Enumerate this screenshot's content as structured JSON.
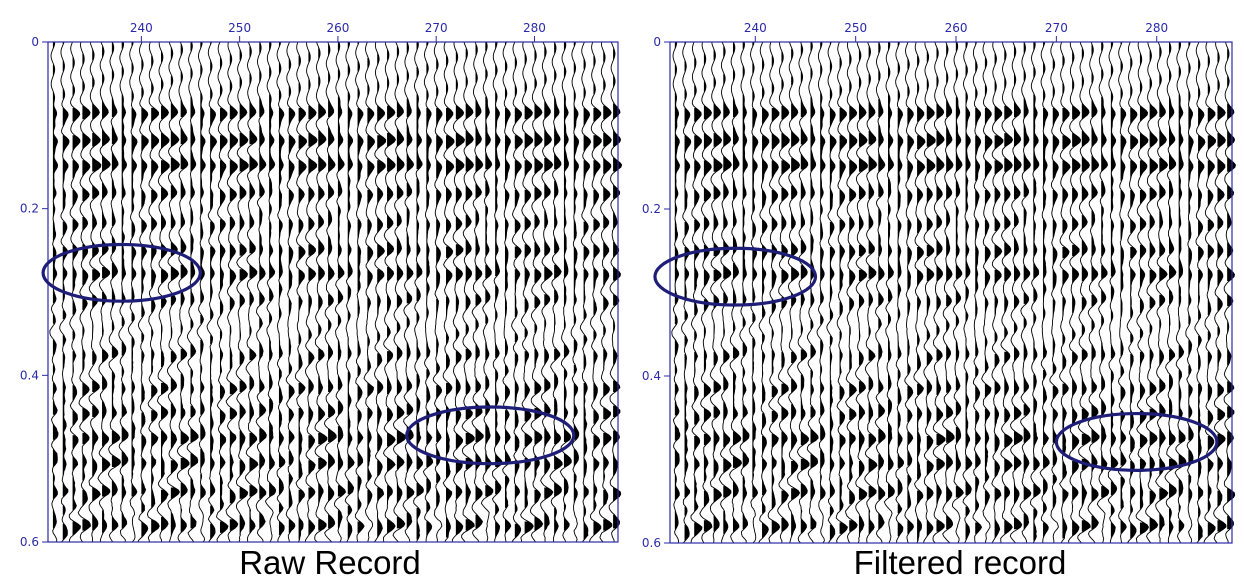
{
  "panels": [
    {
      "id": "raw",
      "caption": "Raw Record",
      "x_ticks": [
        {
          "value": 240,
          "label": "240"
        },
        {
          "value": 250,
          "label": "250"
        },
        {
          "value": 260,
          "label": "260"
        },
        {
          "value": 270,
          "label": "270"
        },
        {
          "value": 280,
          "label": "280"
        }
      ],
      "y_ticks": [
        {
          "value": 0,
          "label": "0"
        },
        {
          "value": 0.2,
          "label": "0.2"
        },
        {
          "value": 0.4,
          "label": "0.4"
        },
        {
          "value": 0.6,
          "label": "0.6"
        }
      ],
      "x_range": [
        230.5,
        288.5
      ],
      "y_range": [
        0,
        0.6
      ],
      "highlights": [
        {
          "trace_center": 238,
          "time_center": 0.277,
          "trace_halfwidth": 8,
          "time_halfwidth": 0.034
        },
        {
          "trace_center": 275.5,
          "time_center": 0.472,
          "trace_halfwidth": 8.5,
          "time_halfwidth": 0.034
        }
      ]
    },
    {
      "id": "filtered",
      "caption": "Filtered record",
      "x_ticks": [
        {
          "value": 240,
          "label": "240"
        },
        {
          "value": 250,
          "label": "250"
        },
        {
          "value": 260,
          "label": "260"
        },
        {
          "value": 270,
          "label": "270"
        },
        {
          "value": 280,
          "label": "280"
        }
      ],
      "y_ticks": [
        {
          "value": 0,
          "label": "0"
        },
        {
          "value": 0.2,
          "label": "0.2"
        },
        {
          "value": 0.4,
          "label": "0.4"
        },
        {
          "value": 0.6,
          "label": "0.6"
        }
      ],
      "x_range": [
        231.5,
        287.5
      ],
      "y_range": [
        0,
        0.6
      ],
      "highlights": [
        {
          "trace_center": 238,
          "time_center": 0.281,
          "trace_halfwidth": 8,
          "time_halfwidth": 0.034
        },
        {
          "trace_center": 278,
          "time_center": 0.479,
          "trace_halfwidth": 8,
          "time_halfwidth": 0.034
        }
      ]
    }
  ],
  "seismic": {
    "traces_per_panel": 58,
    "wiggle_color": "#000000",
    "axis_color": "#2a2aa8",
    "highlight_color": "#1e1e78",
    "events": [
      {
        "t": 0.085,
        "amp": 0.9,
        "moveout": 0.0
      },
      {
        "t": 0.118,
        "amp": 1.0,
        "moveout": 0.0
      },
      {
        "t": 0.148,
        "amp": 1.0,
        "moveout": 0.0
      },
      {
        "t": 0.182,
        "amp": 0.7,
        "moveout": 0.0
      },
      {
        "t": 0.218,
        "amp": 0.55,
        "moveout": 0.0
      },
      {
        "t": 0.25,
        "amp": 0.7,
        "moveout": 0.0
      },
      {
        "t": 0.278,
        "amp": 0.8,
        "moveout": 0.0
      },
      {
        "t": 0.31,
        "amp": 0.45,
        "moveout": 0.0
      },
      {
        "t": 0.375,
        "amp": 0.5,
        "moveout": 0.0
      },
      {
        "t": 0.415,
        "amp": 0.6,
        "moveout": 0.0
      },
      {
        "t": 0.445,
        "amp": 0.65,
        "moveout": 0.0
      },
      {
        "t": 0.475,
        "amp": 0.85,
        "moveout": 0.0
      },
      {
        "t": 0.505,
        "amp": 0.8,
        "moveout": 0.0
      },
      {
        "t": 0.54,
        "amp": 0.75,
        "moveout": 0.0
      },
      {
        "t": 0.58,
        "amp": 0.8,
        "moveout": 0.0
      }
    ]
  }
}
